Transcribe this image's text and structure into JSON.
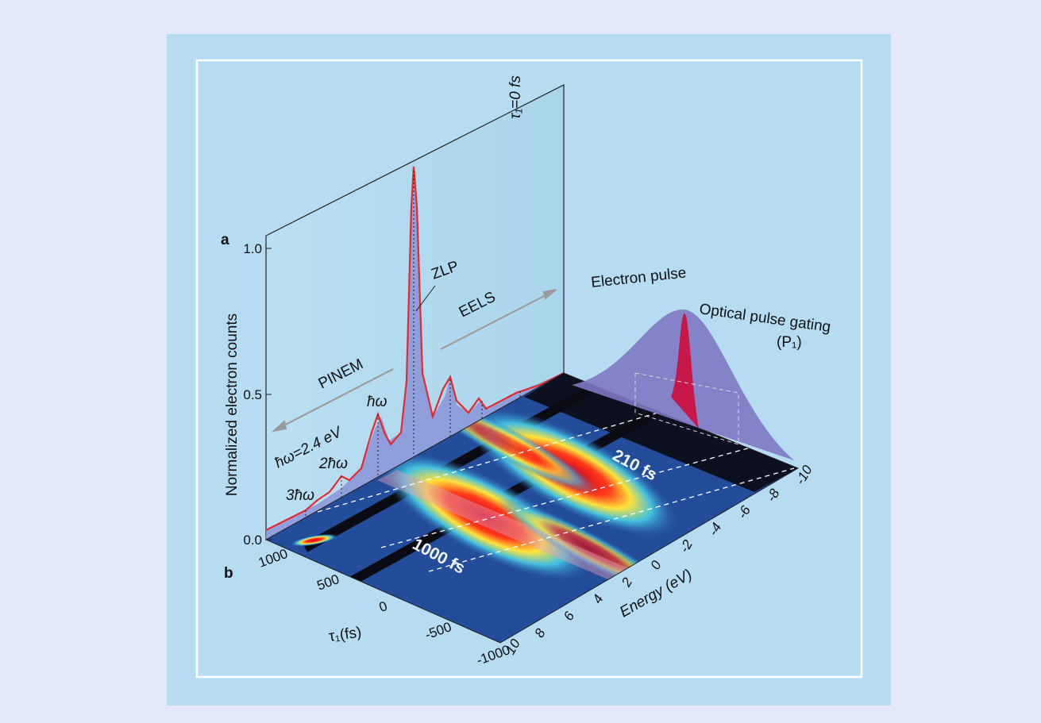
{
  "figure": {
    "panel_a": {
      "label": "a",
      "y_axis_label": "Normalized electron counts",
      "y_ticks": [
        "1.0",
        "0.5",
        "0.0"
      ],
      "condition": "τ₁=0 fs",
      "zlp": "ZLP",
      "eels": "EELS",
      "pinem": "PINEM",
      "photon_energy": "ħω=2.4 eV",
      "peaks": [
        "ħω",
        "2ħω",
        "3ħω"
      ]
    },
    "panel_b": {
      "label": "b",
      "time_axis_label": "τ₁(fs)",
      "time_ticks": [
        "1000",
        "500",
        "0",
        "-500",
        "-1000"
      ],
      "energy_axis_label": "Energy (eV)",
      "energy_ticks": [
        "10",
        "8",
        "6",
        "4",
        "2",
        "0",
        "-2",
        "-4",
        "-6",
        "-8",
        "-10"
      ],
      "widths": [
        "210 fs",
        "1000 fs"
      ]
    },
    "pulses": {
      "electron": "Electron pulse",
      "optical": "Optical pulse gating",
      "optical_sub": "(P₁)"
    }
  }
}
